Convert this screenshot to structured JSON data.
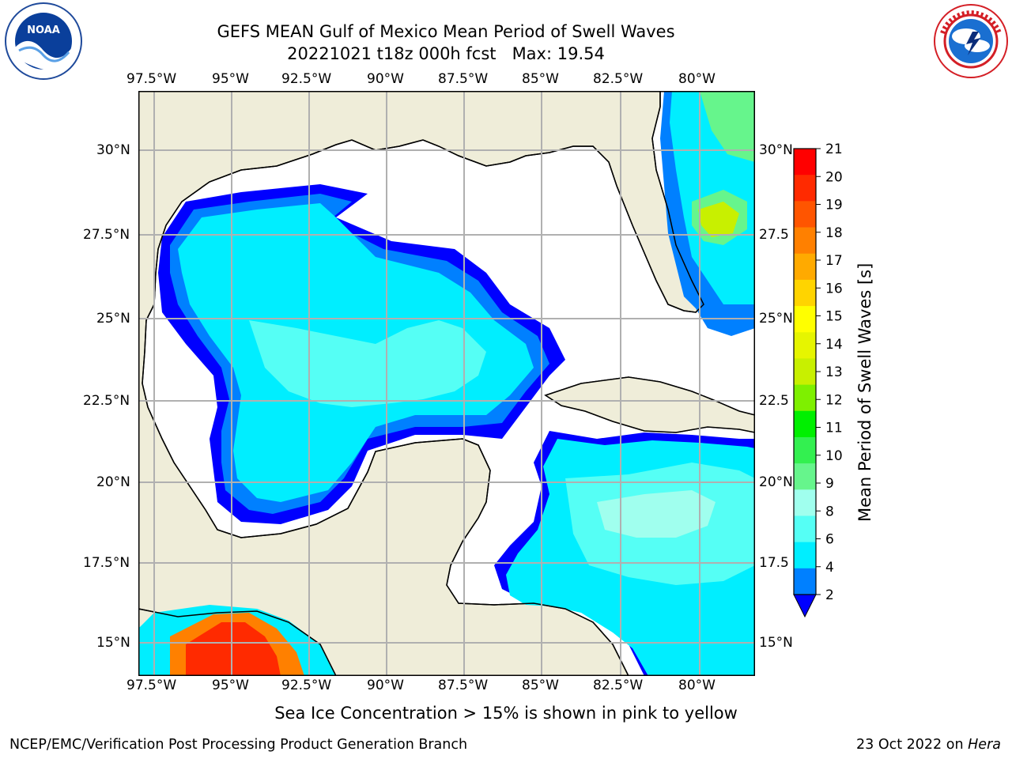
{
  "title": {
    "line1": "GEFS MEAN Gulf of Mexico Mean Period of Swell Waves",
    "line2_date": "20221021 t18z 000h fcst",
    "line2_max": "Max: 19.54"
  },
  "logos": {
    "left": "noara-logo",
    "right": "nws-logo"
  },
  "map": {
    "lon_ticks": [
      "97.5°W",
      "95°W",
      "92.5°W",
      "90°W",
      "87.5°W",
      "85°W",
      "82.5°W",
      "80°W"
    ],
    "lat_ticks_left": [
      "30°N",
      "27.5°N",
      "25°N",
      "22.5°N",
      "20°N",
      "17.5°N",
      "15°N"
    ],
    "lat_ticks_right": [
      "30°N",
      "27.5",
      "25°N",
      "22.5",
      "20°N",
      "17.5",
      "15°N"
    ],
    "land_color": "#efedd9",
    "grid_color": "#b0b0b0"
  },
  "colorbar": {
    "label": "Mean Period of Swell Waves [s]",
    "ticks": [
      "21",
      "20",
      "19",
      "18",
      "17",
      "16",
      "15",
      "14",
      "13",
      "12",
      "11",
      "10",
      "9",
      "8",
      "6",
      "4",
      "2"
    ],
    "colors_top_to_bottom": [
      "#ff0000",
      "#ff2a00",
      "#ff5500",
      "#ff8000",
      "#ffaa00",
      "#ffd400",
      "#ffff00",
      "#e6f500",
      "#c8f000",
      "#7ef000",
      "#00f000",
      "#33f050",
      "#66f58c",
      "#a0ffee",
      "#55fff5",
      "#00eeff",
      "#0080ff"
    ],
    "extend_color": "#0000ff"
  },
  "note": "Sea Ice Concentration > 15% is shown in pink to yellow",
  "footer": {
    "left": "NCEP/EMC/Verification Post Processing Product Generation Branch",
    "right_date": "23 Oct 2022 on",
    "right_host": "Hera"
  }
}
